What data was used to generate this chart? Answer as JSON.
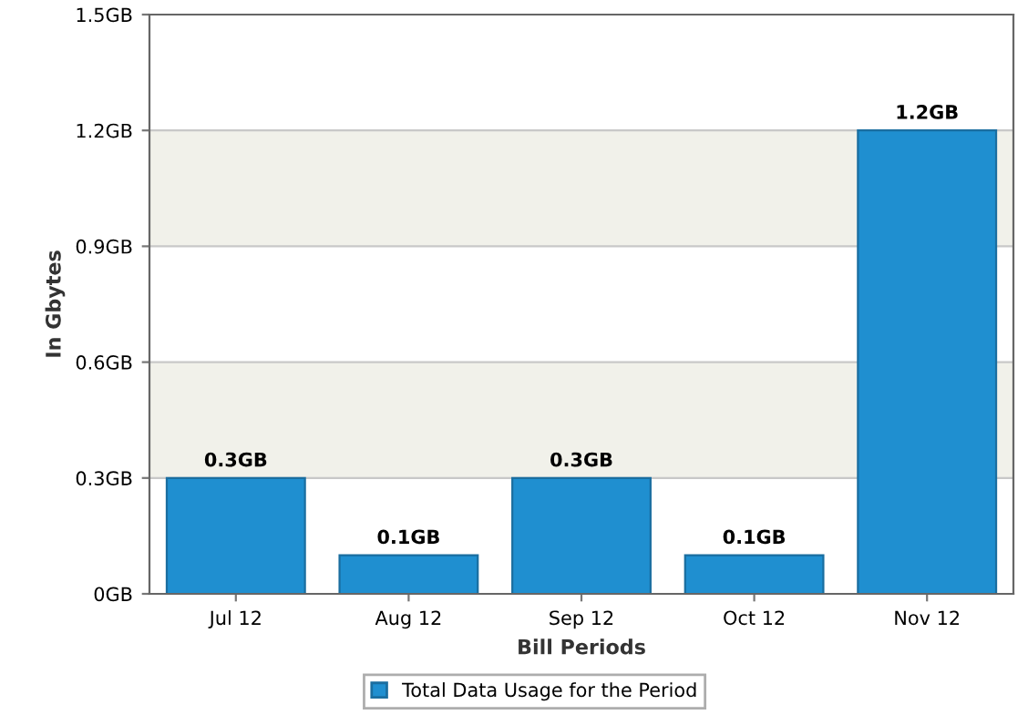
{
  "chart_data": {
    "type": "bar",
    "xlabel": "Bill Periods",
    "ylabel": "In Gbytes",
    "categories": [
      "Jul 12",
      "Aug 12",
      "Sep 12",
      "Oct 12",
      "Nov 12"
    ],
    "series": [
      {
        "name": "Total Data Usage for the Period",
        "color": "#1f8fd0",
        "values": [
          0.3,
          0.1,
          0.3,
          0.1,
          1.2
        ],
        "value_labels": [
          "0.3GB",
          "0.1GB",
          "0.3GB",
          "0.1GB",
          "1.2GB"
        ]
      }
    ],
    "ylim": [
      0,
      1.5
    ],
    "yticks": [
      {
        "value": 0,
        "label": "0GB"
      },
      {
        "value": 0.3,
        "label": "0.3GB"
      },
      {
        "value": 0.6,
        "label": "0.6GB"
      },
      {
        "value": 0.9,
        "label": "0.9GB"
      },
      {
        "value": 1.2,
        "label": "1.2GB"
      },
      {
        "value": 1.5,
        "label": "1.5GB"
      }
    ],
    "bands": [
      {
        "axis": "y",
        "from": 0.3,
        "to": 0.6,
        "color": "#f1f1ea"
      },
      {
        "axis": "y",
        "from": 0.9,
        "to": 1.2,
        "color": "#f1f1ea"
      }
    ],
    "grid": "y",
    "legend": "bottom"
  }
}
